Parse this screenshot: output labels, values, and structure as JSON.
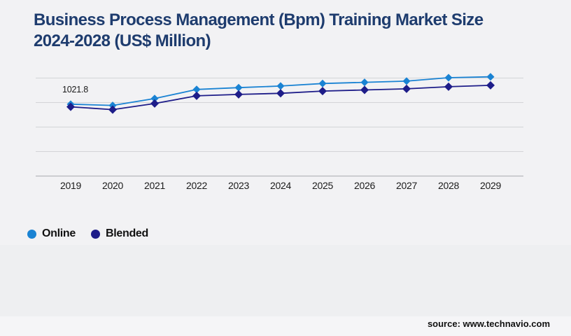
{
  "title": {
    "line1": "Business Process Management (Bpm) Training Market Size",
    "line2": "2024-2028 (US$ Million)"
  },
  "source": "source: www.technavio.com",
  "legend": {
    "items": [
      {
        "label": "Online",
        "color": "#1a83d3"
      },
      {
        "label": "Blended",
        "color": "#1e1d89"
      }
    ]
  },
  "colors": {
    "background": "#f2f2f4",
    "band": "#eeeff1",
    "gridline": "#d3d4d7",
    "axis_line": "#b7b8bb",
    "title_text": "#1e3c6e",
    "online_series": "#1a83d3",
    "blended_series": "#1e1d89",
    "label_text": "#1a1a1a"
  },
  "chart_data": {
    "type": "line",
    "title": "Business Process Management (Bpm) Training Market Size 2024-2028 (US$ Million)",
    "xlabel": "",
    "ylabel": "",
    "categories": [
      "2019",
      "2020",
      "2021",
      "2022",
      "2023",
      "2024",
      "2025",
      "2026",
      "2027",
      "2028",
      "2029"
    ],
    "series": [
      {
        "name": "Online",
        "color": "#1a83d3",
        "values": [
          1021.8,
          1004,
          1102,
          1232,
          1258,
          1281,
          1317,
          1334,
          1351,
          1400,
          1413
        ]
      },
      {
        "name": "Blended",
        "color": "#1e1d89",
        "values": [
          984,
          944,
          1031,
          1141,
          1161,
          1177,
          1209,
          1225,
          1241,
          1271,
          1291
        ]
      }
    ],
    "ylim": [
      0,
      1400
    ],
    "grid": "horizontal-only",
    "gridline_values": [
      350,
      700,
      1050,
      1400
    ],
    "y_axis_labels_visible": false,
    "legend_position": "bottom-left",
    "marker_shape": "diamond",
    "data_labels": {
      "first_online": "1021.8"
    }
  }
}
